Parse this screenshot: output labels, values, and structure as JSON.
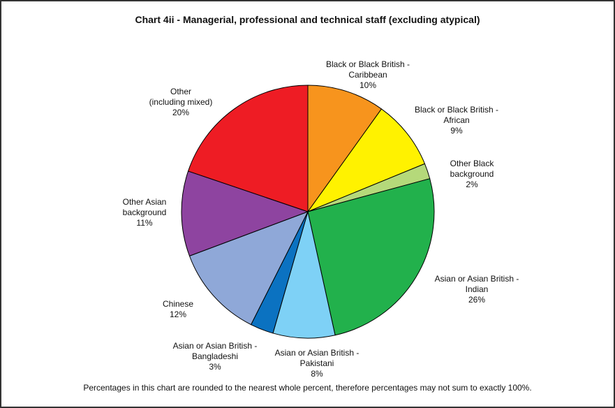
{
  "chart_data": {
    "type": "pie",
    "title": "Chart 4ii - Managerial, professional and technical staff (excluding atypical)",
    "note": "Percentages in this chart are rounded to the nearest whole percent, therefore percentages may not sum to exactly 100%.",
    "slices": [
      {
        "label": [
          "Black or Black British -",
          "Caribbean",
          "10%"
        ],
        "value": 10,
        "color": "#f7941d"
      },
      {
        "label": [
          "Black or Black British -",
          "African",
          "9%"
        ],
        "value": 9,
        "color": "#fff200"
      },
      {
        "label": [
          "Other Black",
          "background",
          "2%"
        ],
        "value": 2,
        "color": "#b5d97a"
      },
      {
        "label": [
          "Asian or Asian British -",
          "Indian",
          "26%"
        ],
        "value": 26,
        "color": "#22b14c"
      },
      {
        "label": [
          "Asian or Asian British -",
          "Pakistani",
          "8%"
        ],
        "value": 8,
        "color": "#7ed1f6"
      },
      {
        "label": [
          "Asian or Asian British -",
          "Bangladeshi",
          "3%"
        ],
        "value": 3,
        "color": "#0b72c1"
      },
      {
        "label": [
          "Chinese",
          "12%"
        ],
        "value": 12,
        "color": "#8fa8d8"
      },
      {
        "label": [
          "Other Asian",
          "background",
          "11%"
        ],
        "value": 11,
        "color": "#8e44a0"
      },
      {
        "label": [
          "Other",
          "(including mixed)",
          "20%"
        ],
        "value": 20,
        "color": "#ee1c24"
      }
    ]
  }
}
